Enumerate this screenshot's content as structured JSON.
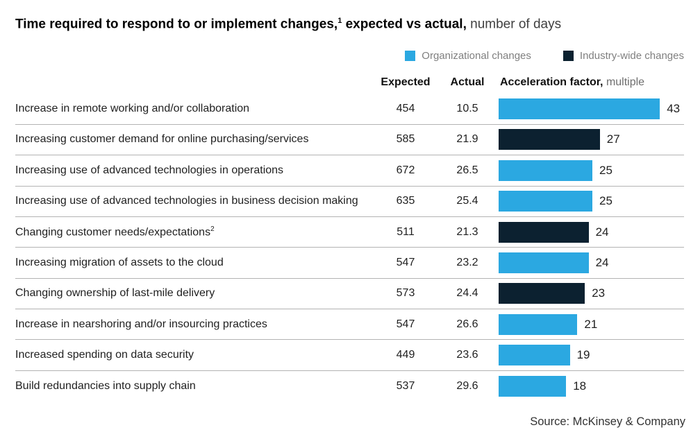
{
  "title": {
    "bold_1": "Time required to respond to or implement changes,",
    "footnote_sup": "1",
    "bold_2": " expected vs actual,",
    "regular": " number of days"
  },
  "legend": {
    "items": [
      {
        "label": "Organizational changes",
        "series": "organizational"
      },
      {
        "label": "Industry-wide changes",
        "series": "industry_wide"
      }
    ]
  },
  "colors": {
    "organizational": "#2BA8E1",
    "industry_wide": "#0C2130",
    "divider": "#B3B3B3",
    "legend_text": "#7F7F7F"
  },
  "table_header": {
    "expected": "Expected",
    "actual": "Actual",
    "acceleration_bold": "Acceleration factor,",
    "acceleration_regular": " multiple"
  },
  "chart_data": {
    "type": "bar",
    "title": "Time required to respond to or implement changes, expected vs actual",
    "unit": "number of days",
    "xlabel": "Acceleration factor, multiple",
    "xlim": [
      0,
      43
    ],
    "legend_position": "top-right",
    "series_names": [
      "Organizational changes",
      "Industry-wide changes"
    ],
    "rows": [
      {
        "category": "Increase in remote working and/or collaboration",
        "footnote": "",
        "expected": "454",
        "actual": "10.5",
        "acceleration": 43,
        "series": "organizational"
      },
      {
        "category": "Increasing customer demand for online purchasing/services",
        "footnote": "",
        "expected": "585",
        "actual": "21.9",
        "acceleration": 27,
        "series": "industry_wide"
      },
      {
        "category": "Increasing use of advanced technologies in operations",
        "footnote": "",
        "expected": "672",
        "actual": "26.5",
        "acceleration": 25,
        "series": "organizational"
      },
      {
        "category": "Increasing use of advanced technologies in business decision making",
        "footnote": "",
        "expected": "635",
        "actual": "25.4",
        "acceleration": 25,
        "series": "organizational"
      },
      {
        "category": "Changing customer needs/expectations",
        "footnote": "2",
        "expected": "511",
        "actual": "21.3",
        "acceleration": 24,
        "series": "industry_wide"
      },
      {
        "category": "Increasing migration of assets to the cloud",
        "footnote": "",
        "expected": "547",
        "actual": "23.2",
        "acceleration": 24,
        "series": "organizational"
      },
      {
        "category": "Changing ownership of last-mile delivery",
        "footnote": "",
        "expected": "573",
        "actual": "24.4",
        "acceleration": 23,
        "series": "industry_wide"
      },
      {
        "category": "Increase in nearshoring and/or insourcing practices",
        "footnote": "",
        "expected": "547",
        "actual": "26.6",
        "acceleration": 21,
        "series": "organizational"
      },
      {
        "category": "Increased spending on data security",
        "footnote": "",
        "expected": "449",
        "actual": "23.6",
        "acceleration": 19,
        "series": "organizational"
      },
      {
        "category": "Build redundancies into supply chain",
        "footnote": "",
        "expected": "537",
        "actual": "29.6",
        "acceleration": 18,
        "series": "organizational"
      }
    ]
  },
  "source": "Source: McKinsey & Company"
}
